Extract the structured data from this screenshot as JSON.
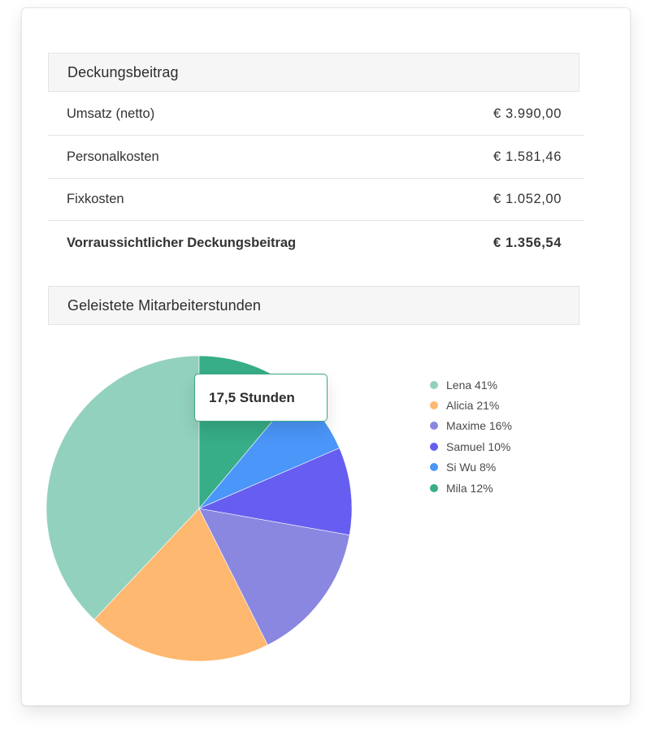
{
  "sections": {
    "contribution_title": "Deckungsbeitrag",
    "hours_title": "Geleistete Mitarbeiterstunden"
  },
  "rows": [
    {
      "label": "Umsatz (netto)",
      "value": "€ 3.990,00"
    },
    {
      "label": "Personalkosten",
      "value": "€ 1.581,46"
    },
    {
      "label": "Fixkosten",
      "value": "€ 1.052,00"
    },
    {
      "label": "Vorraussichtlicher Deckungsbeitrag",
      "value": "€ 1.356,54"
    }
  ],
  "tooltip": {
    "text": "17,5 Stunden"
  },
  "chart_data": {
    "type": "pie",
    "title": "Geleistete Mitarbeiterstunden",
    "legend_position": "right",
    "slices": [
      {
        "label": "Lena 41%",
        "name": "Lena",
        "percent": 41,
        "color": "#93d1bf"
      },
      {
        "label": "Alicia 21%",
        "name": "Alicia",
        "percent": 21,
        "color": "#ffb870"
      },
      {
        "label": "Maxime 16%",
        "name": "Maxime",
        "percent": 16,
        "color": "#8a87e1"
      },
      {
        "label": "Samuel 10%",
        "name": "Samuel",
        "percent": 10,
        "color": "#665ef0"
      },
      {
        "label": "Si Wu 8%",
        "name": "Si Wu",
        "percent": 8,
        "color": "#4b96f9"
      },
      {
        "label": "Mila 12%",
        "name": "Mila",
        "percent": 12,
        "color": "#37ad88"
      }
    ]
  }
}
